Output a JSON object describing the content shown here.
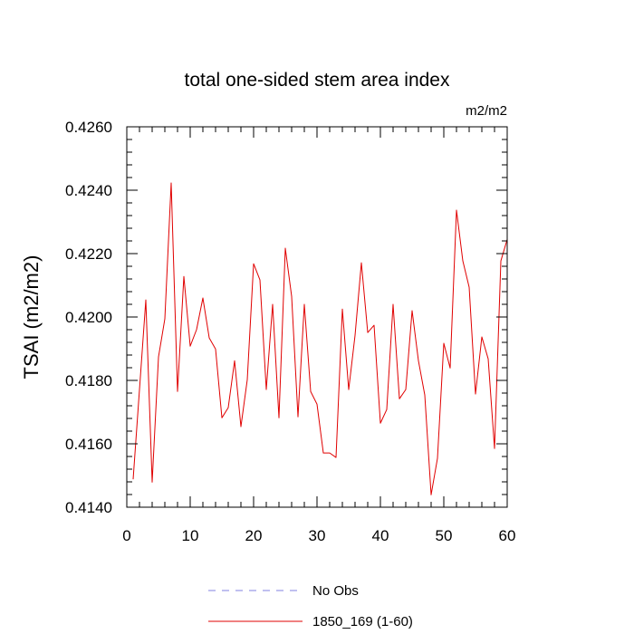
{
  "chart_data": {
    "type": "line",
    "title": "total one-sided stem area index",
    "units_label": "m2/m2",
    "ylabel": "TSAI  (m2/m2)",
    "xlabel": "",
    "xlim": [
      0,
      60
    ],
    "ylim": [
      0.414,
      0.426
    ],
    "x_ticks": [
      0,
      10,
      20,
      30,
      40,
      50,
      60
    ],
    "x_tick_labels": [
      "0",
      "10",
      "20",
      "30",
      "40",
      "50",
      "60"
    ],
    "y_ticks": [
      0.414,
      0.416,
      0.418,
      0.42,
      0.422,
      0.424,
      0.426
    ],
    "y_tick_labels": [
      "0.4140",
      "0.4160",
      "0.4180",
      "0.4200",
      "0.4220",
      "0.4240",
      "0.4260"
    ],
    "grid": false,
    "legend_position": "bottom-center",
    "legend": [
      {
        "label": "No Obs",
        "color": "#8080e0",
        "style": "dashed"
      },
      {
        "label": "1850_169 (1-60)",
        "color": "#e00000",
        "style": "solid"
      }
    ],
    "series": [
      {
        "name": "1850_169 (1-60)",
        "color": "#e00000",
        "x": [
          1,
          2,
          3,
          4,
          5,
          6,
          7,
          8,
          9,
          10,
          11,
          12,
          13,
          14,
          15,
          16,
          17,
          18,
          19,
          20,
          21,
          22,
          23,
          24,
          25,
          26,
          27,
          28,
          29,
          30,
          31,
          32,
          33,
          34,
          35,
          36,
          37,
          38,
          39,
          40,
          41,
          42,
          43,
          44,
          45,
          46,
          47,
          48,
          49,
          50,
          51,
          52,
          53,
          54,
          55,
          56,
          57,
          58,
          59,
          60
        ],
        "values": [
          0.41488,
          0.41771,
          0.42054,
          0.41479,
          0.41874,
          0.41994,
          0.42423,
          0.41765,
          0.42128,
          0.41908,
          0.4196,
          0.4206,
          0.41934,
          0.41899,
          0.41682,
          0.41714,
          0.41862,
          0.41654,
          0.41802,
          0.42168,
          0.42117,
          0.41771,
          0.4204,
          0.41682,
          0.42217,
          0.42065,
          0.41685,
          0.4204,
          0.41765,
          0.41725,
          0.41571,
          0.41571,
          0.41557,
          0.42025,
          0.41771,
          0.41942,
          0.42171,
          0.41951,
          0.41974,
          0.41665,
          0.41708,
          0.4204,
          0.41742,
          0.41771,
          0.4202,
          0.41862,
          0.41754,
          0.41439,
          0.41554,
          0.41917,
          0.41839,
          0.42337,
          0.42177,
          0.42094,
          0.41757,
          0.41937,
          0.41868,
          0.41585,
          0.42177,
          0.42245
        ]
      }
    ]
  }
}
